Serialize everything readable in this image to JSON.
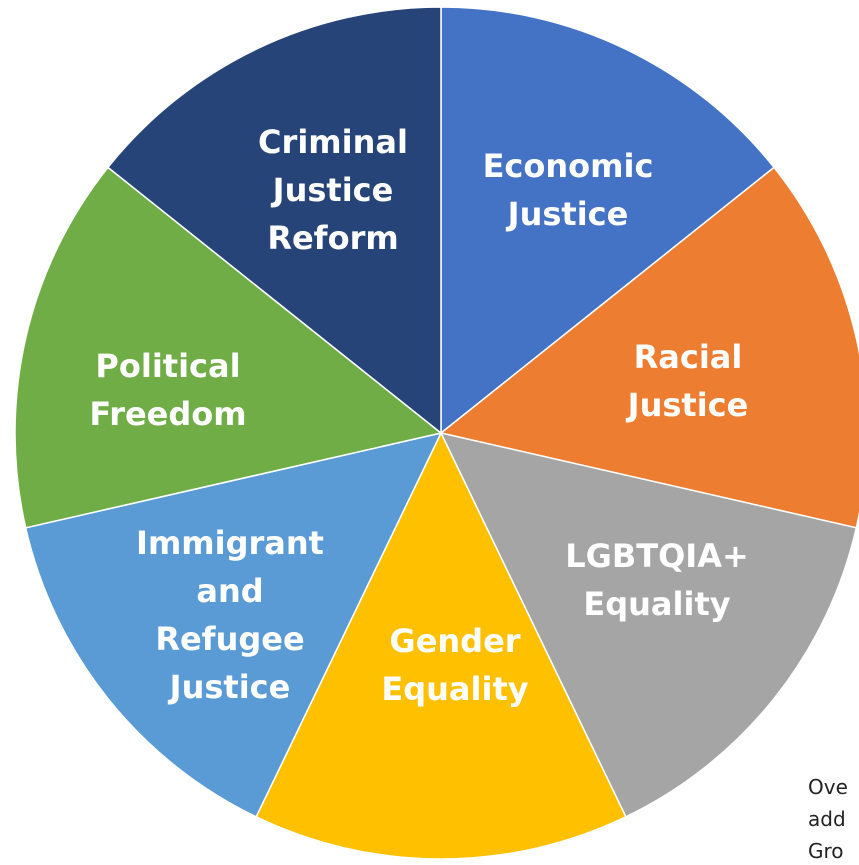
{
  "chart_data": {
    "type": "pie",
    "categories": [
      "Economic Justice",
      "Racial Justice",
      "LGBTQIA+ Equality",
      "Gender Equality",
      "Immigrant and Refugee Justice",
      "Political Freedom",
      "Criminal Justice Reform"
    ],
    "values": [
      1,
      1,
      1,
      1,
      1,
      1,
      1
    ],
    "colors": [
      "#4472c4",
      "#ed7d31",
      "#a5a5a5",
      "#ffc000",
      "#5b9bd5",
      "#70ad47",
      "#264478"
    ],
    "annotation": [
      "Ove",
      "add",
      "Gro"
    ]
  }
}
